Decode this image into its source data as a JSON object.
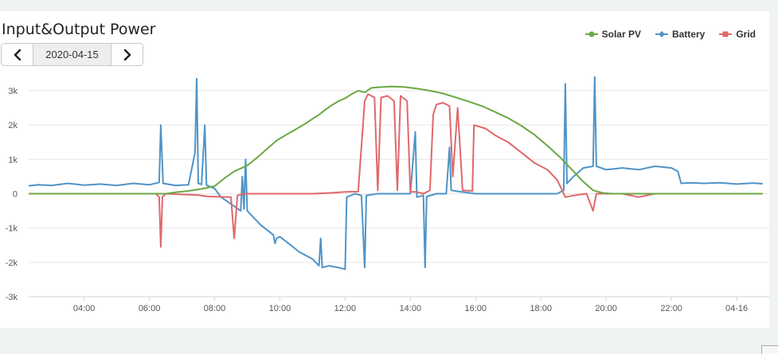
{
  "chart_data": {
    "type": "line",
    "title": "Input&Output Power",
    "yticks": [
      3000,
      2000,
      1000,
      0,
      -1000,
      -2000,
      -3000
    ],
    "ytick_labels": [
      "3k",
      "2k",
      "1k",
      "0",
      "-1k",
      "-2k",
      "-3k"
    ],
    "ylim": [
      -3000,
      3000
    ],
    "xlim": [
      2.3,
      25.0
    ],
    "xticks": [
      4,
      6,
      8,
      10,
      12,
      14,
      16,
      18,
      20,
      22,
      24
    ],
    "xtick_labels": [
      "04:00",
      "06:00",
      "08:00",
      "10:00",
      "12:00",
      "14:00",
      "16:00",
      "18:00",
      "20:00",
      "22:00",
      "04-16"
    ],
    "grid": "horizontal",
    "legend_position": "top-right",
    "series": [
      {
        "name": "Solar PV",
        "color": "#6aa843",
        "points": [
          [
            2.3,
            0
          ],
          [
            6.5,
            0
          ],
          [
            6.8,
            40
          ],
          [
            7.2,
            80
          ],
          [
            7.6,
            140
          ],
          [
            8.0,
            220
          ],
          [
            8.3,
            450
          ],
          [
            8.6,
            650
          ],
          [
            9.0,
            820
          ],
          [
            9.3,
            1050
          ],
          [
            9.6,
            1300
          ],
          [
            9.9,
            1550
          ],
          [
            10.2,
            1720
          ],
          [
            10.5,
            1880
          ],
          [
            10.8,
            2050
          ],
          [
            11.0,
            2180
          ],
          [
            11.2,
            2300
          ],
          [
            11.4,
            2450
          ],
          [
            11.6,
            2580
          ],
          [
            11.8,
            2700
          ],
          [
            12.0,
            2780
          ],
          [
            12.2,
            2900
          ],
          [
            12.4,
            3000
          ],
          [
            12.6,
            2950
          ],
          [
            12.8,
            3080
          ],
          [
            13.0,
            3100
          ],
          [
            13.4,
            3120
          ],
          [
            13.8,
            3110
          ],
          [
            14.2,
            3060
          ],
          [
            14.6,
            3000
          ],
          [
            15.0,
            2920
          ],
          [
            15.4,
            2800
          ],
          [
            15.8,
            2680
          ],
          [
            16.2,
            2550
          ],
          [
            16.6,
            2380
          ],
          [
            17.0,
            2200
          ],
          [
            17.4,
            1980
          ],
          [
            17.8,
            1720
          ],
          [
            18.2,
            1400
          ],
          [
            18.6,
            1050
          ],
          [
            19.0,
            650
          ],
          [
            19.3,
            350
          ],
          [
            19.6,
            100
          ],
          [
            19.9,
            20
          ],
          [
            20.2,
            0
          ],
          [
            24.8,
            0
          ]
        ]
      },
      {
        "name": "Battery",
        "color": "#4f93c8",
        "points": [
          [
            2.3,
            230
          ],
          [
            2.6,
            260
          ],
          [
            3.0,
            240
          ],
          [
            3.5,
            300
          ],
          [
            4.0,
            250
          ],
          [
            4.5,
            280
          ],
          [
            5.0,
            240
          ],
          [
            5.5,
            300
          ],
          [
            6.0,
            260
          ],
          [
            6.3,
            330
          ],
          [
            6.35,
            2000
          ],
          [
            6.42,
            300
          ],
          [
            6.8,
            240
          ],
          [
            7.2,
            260
          ],
          [
            7.4,
            1200
          ],
          [
            7.45,
            3350
          ],
          [
            7.5,
            300
          ],
          [
            7.6,
            270
          ],
          [
            7.7,
            2000
          ],
          [
            7.75,
            250
          ],
          [
            8.0,
            150
          ],
          [
            8.2,
            -100
          ],
          [
            8.5,
            -300
          ],
          [
            8.8,
            -500
          ],
          [
            8.85,
            500
          ],
          [
            8.9,
            -450
          ],
          [
            8.95,
            1000
          ],
          [
            9.0,
            -500
          ],
          [
            9.2,
            -700
          ],
          [
            9.4,
            -900
          ],
          [
            9.6,
            -1050
          ],
          [
            9.8,
            -1200
          ],
          [
            9.85,
            -1450
          ],
          [
            9.9,
            -1300
          ],
          [
            10.0,
            -1250
          ],
          [
            10.2,
            -1400
          ],
          [
            10.4,
            -1550
          ],
          [
            10.6,
            -1700
          ],
          [
            10.8,
            -1800
          ],
          [
            11.0,
            -1900
          ],
          [
            11.1,
            -2000
          ],
          [
            11.2,
            -2100
          ],
          [
            11.25,
            -1300
          ],
          [
            11.3,
            -2150
          ],
          [
            11.5,
            -2100
          ],
          [
            11.8,
            -2150
          ],
          [
            12.0,
            -2200
          ],
          [
            12.05,
            -100
          ],
          [
            12.3,
            0
          ],
          [
            12.5,
            -50
          ],
          [
            12.6,
            -2150
          ],
          [
            12.65,
            -50
          ],
          [
            13.0,
            0
          ],
          [
            13.5,
            0
          ],
          [
            14.0,
            0
          ],
          [
            14.15,
            1800
          ],
          [
            14.2,
            -100
          ],
          [
            14.4,
            -50
          ],
          [
            14.45,
            -2150
          ],
          [
            14.5,
            -80
          ],
          [
            14.8,
            0
          ],
          [
            15.1,
            0
          ],
          [
            15.2,
            1350
          ],
          [
            15.25,
            100
          ],
          [
            15.5,
            60
          ],
          [
            16.0,
            0
          ],
          [
            17.0,
            0
          ],
          [
            18.0,
            0
          ],
          [
            18.5,
            0
          ],
          [
            18.7,
            100
          ],
          [
            18.75,
            3200
          ],
          [
            18.8,
            300
          ],
          [
            19.0,
            500
          ],
          [
            19.3,
            750
          ],
          [
            19.6,
            800
          ],
          [
            19.65,
            3400
          ],
          [
            19.7,
            800
          ],
          [
            20.0,
            700
          ],
          [
            20.5,
            750
          ],
          [
            21.0,
            700
          ],
          [
            21.5,
            800
          ],
          [
            22.0,
            750
          ],
          [
            22.2,
            650
          ],
          [
            22.3,
            300
          ],
          [
            22.6,
            320
          ],
          [
            23.0,
            300
          ],
          [
            23.5,
            320
          ],
          [
            24.0,
            280
          ],
          [
            24.5,
            310
          ],
          [
            24.8,
            290
          ]
        ]
      },
      {
        "name": "Grid",
        "color": "#e0686a",
        "points": [
          [
            2.3,
            0
          ],
          [
            6.2,
            0
          ],
          [
            6.3,
            -100
          ],
          [
            6.35,
            -1550
          ],
          [
            6.4,
            -100
          ],
          [
            6.5,
            0
          ],
          [
            7.5,
            -40
          ],
          [
            7.8,
            -80
          ],
          [
            8.5,
            -100
          ],
          [
            8.6,
            -1300
          ],
          [
            8.7,
            -50
          ],
          [
            8.9,
            0
          ],
          [
            11.0,
            0
          ],
          [
            11.5,
            20
          ],
          [
            12.0,
            50
          ],
          [
            12.4,
            60
          ],
          [
            12.6,
            2700
          ],
          [
            12.7,
            2900
          ],
          [
            12.9,
            2800
          ],
          [
            13.0,
            100
          ],
          [
            13.1,
            2800
          ],
          [
            13.3,
            2850
          ],
          [
            13.5,
            2700
          ],
          [
            13.6,
            100
          ],
          [
            13.7,
            2850
          ],
          [
            13.9,
            2700
          ],
          [
            14.0,
            50
          ],
          [
            14.2,
            50
          ],
          [
            14.4,
            0
          ],
          [
            14.6,
            100
          ],
          [
            14.7,
            2300
          ],
          [
            14.8,
            2600
          ],
          [
            15.0,
            2650
          ],
          [
            15.2,
            2550
          ],
          [
            15.3,
            500
          ],
          [
            15.45,
            2500
          ],
          [
            15.6,
            100
          ],
          [
            15.9,
            80
          ],
          [
            15.95,
            2000
          ],
          [
            16.3,
            1900
          ],
          [
            16.6,
            1700
          ],
          [
            17.0,
            1500
          ],
          [
            17.4,
            1200
          ],
          [
            17.8,
            900
          ],
          [
            18.2,
            700
          ],
          [
            18.5,
            400
          ],
          [
            18.75,
            -100
          ],
          [
            19.0,
            -50
          ],
          [
            19.4,
            0
          ],
          [
            19.6,
            -500
          ],
          [
            19.7,
            0
          ],
          [
            20.5,
            0
          ],
          [
            21.0,
            -100
          ],
          [
            21.5,
            0
          ],
          [
            24.8,
            0
          ]
        ]
      }
    ]
  },
  "datepicker": {
    "value": "2020-04-15",
    "prev_icon": "chevron-left-icon",
    "next_icon": "chevron-right-icon"
  }
}
